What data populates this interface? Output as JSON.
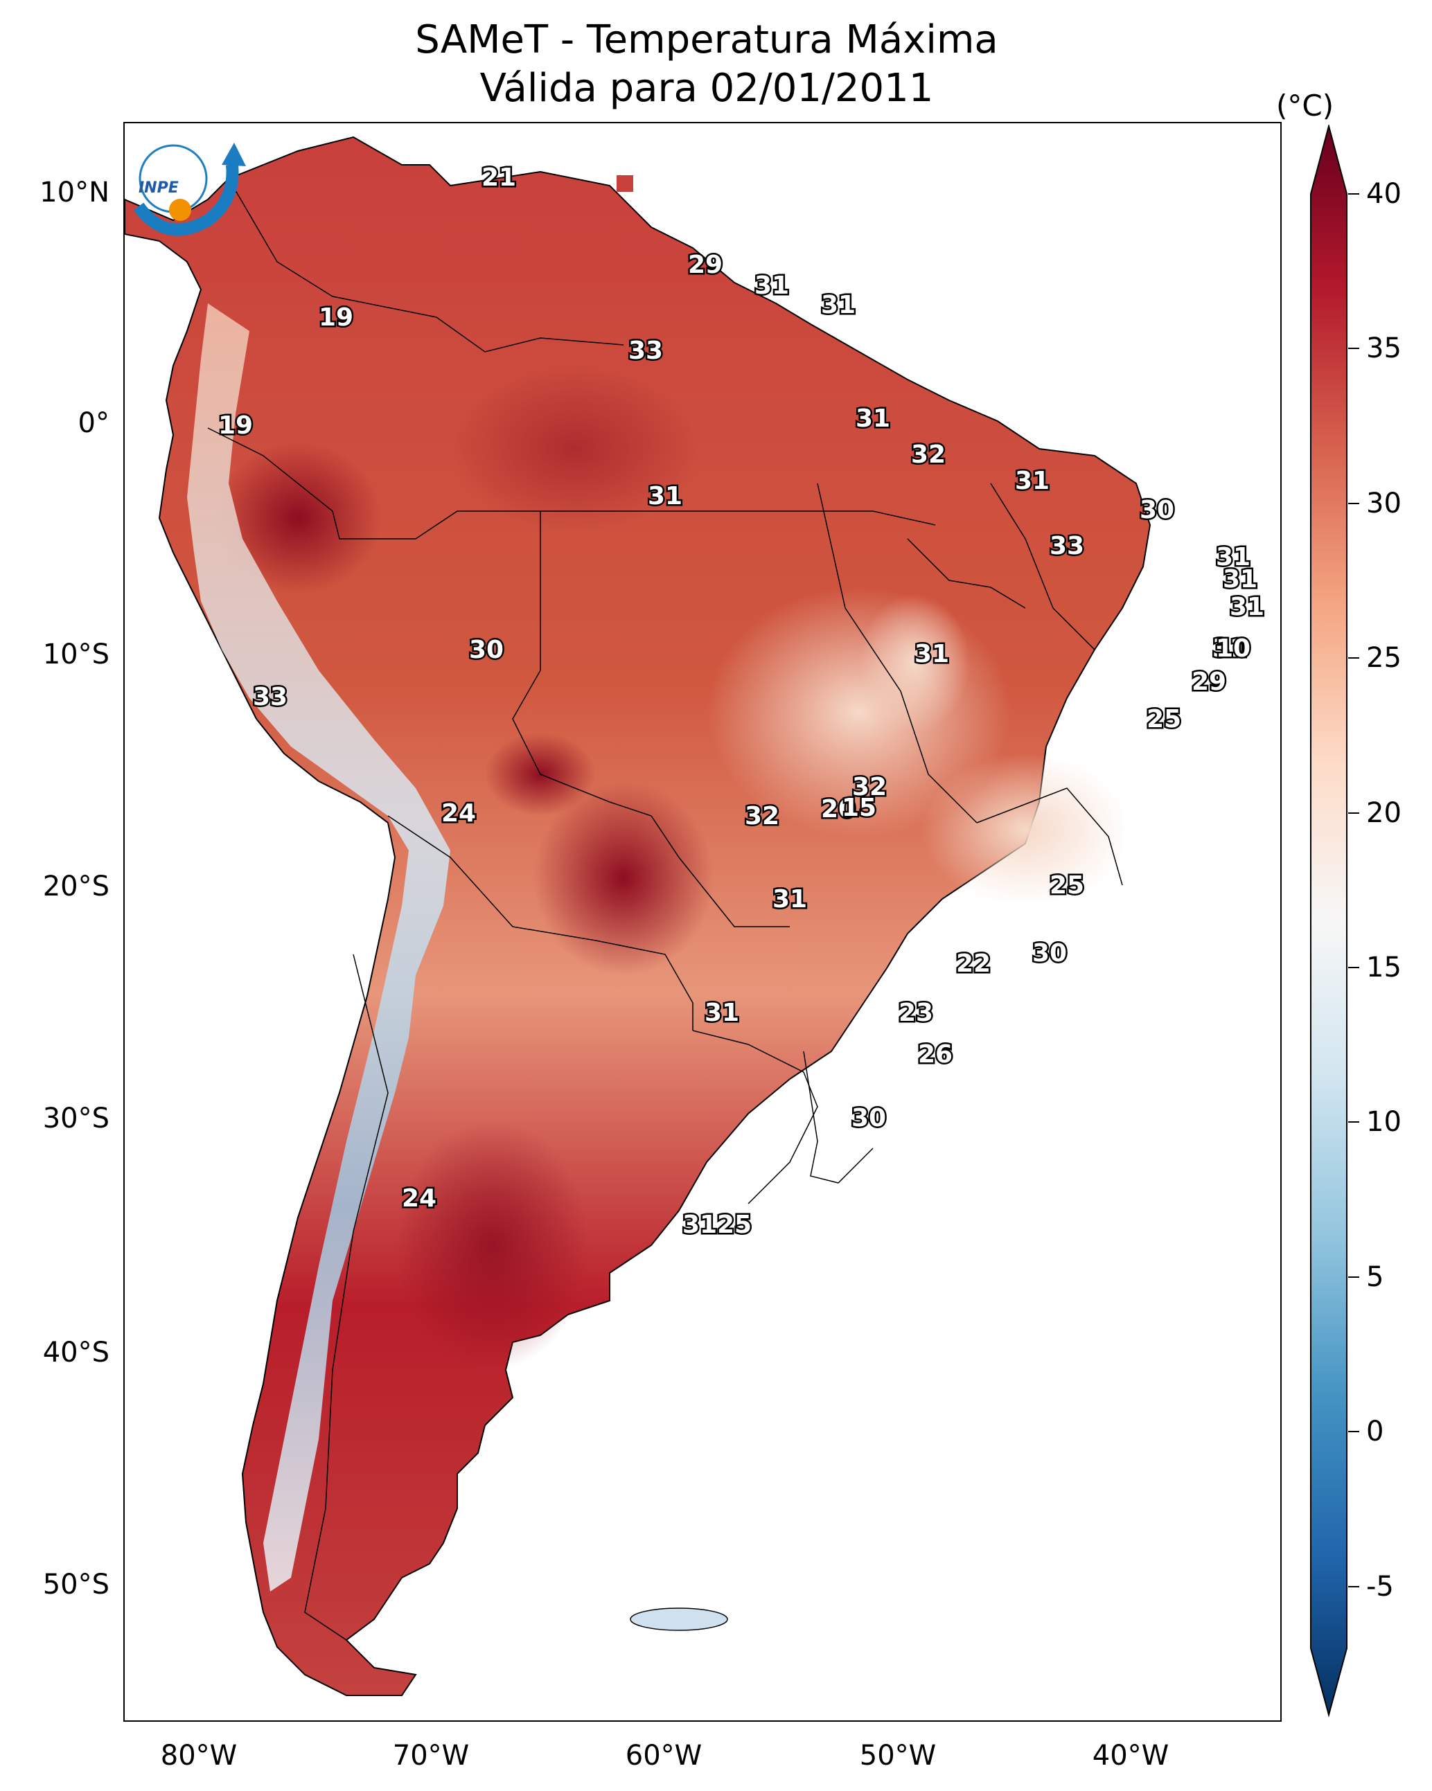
{
  "title": {
    "line1": "SAMeT - Temperatura Máxima",
    "line2": "Válida para 02/01/2011"
  },
  "map": {
    "lat_ticks": [
      "10°N",
      "0°",
      "10°S",
      "20°S",
      "30°S",
      "40°S",
      "50°S"
    ],
    "lon_ticks": [
      "80°W",
      "70°W",
      "60°W",
      "50°W",
      "40°W"
    ],
    "contour_labels": [
      "21",
      "29",
      "31",
      "31",
      "19",
      "33",
      "19",
      "31",
      "32",
      "31",
      "31",
      "30",
      "33",
      "31",
      "31",
      "31",
      "31",
      "10",
      "30",
      "31",
      "29",
      "33",
      "25",
      "32",
      "20",
      "15",
      "24",
      "32",
      "25",
      "31",
      "31",
      "30",
      "22",
      "31",
      "23",
      "26",
      "30",
      "24",
      "31",
      "25"
    ]
  },
  "colorbar": {
    "unit": "(°C)",
    "ticks": [
      "40",
      "35",
      "30",
      "25",
      "20",
      "15",
      "10",
      "5",
      "0",
      "-5"
    ],
    "min": -7,
    "max": 40,
    "colors": [
      "#053061",
      "#2166ac",
      "#4393c3",
      "#92c5de",
      "#d1e5f0",
      "#f7f7f7",
      "#fddbc7",
      "#f4a582",
      "#d6604d",
      "#b2182b",
      "#67001f"
    ]
  },
  "logo": {
    "text": "INPE"
  }
}
